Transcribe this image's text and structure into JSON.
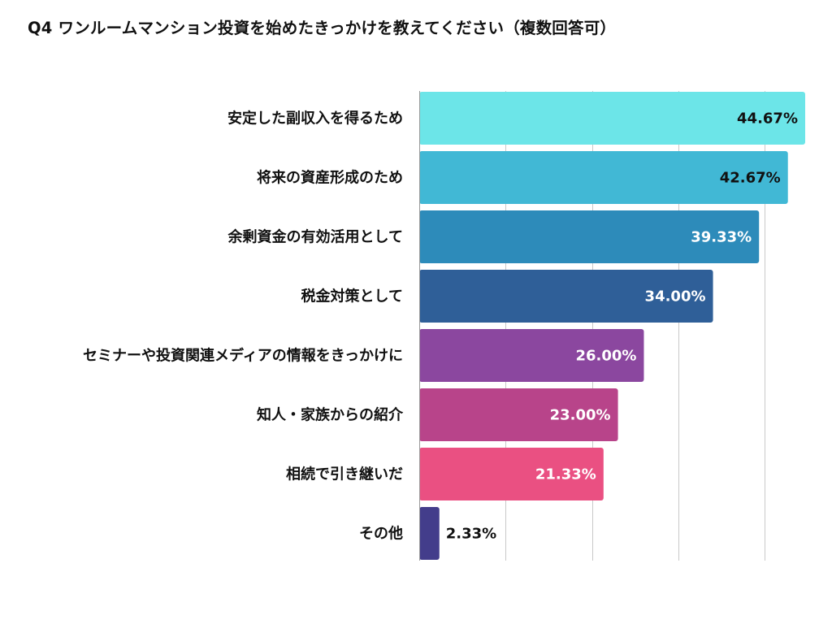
{
  "chart_data": {
    "type": "bar",
    "orientation": "horizontal",
    "title": "Q4 ワンルームマンション投資を始めたきっかけを教えてください（複数回答可）",
    "categories": [
      "安定した副収入を得るため",
      "将来の資産形成のため",
      "余剰資金の有効活用として",
      "税金対策として",
      "セミナーや投資関連メディアの情報をきっかけに",
      "知人・家族からの紹介",
      "相続で引き継いだ",
      "その他"
    ],
    "values": [
      44.67,
      42.67,
      39.33,
      34.0,
      26.0,
      23.0,
      21.33,
      2.33
    ],
    "value_labels": [
      "44.67%",
      "42.67%",
      "39.33%",
      "34.00%",
      "26.00%",
      "23.00%",
      "21.33%",
      "2.33%"
    ],
    "colors": [
      "#6ce5e8",
      "#41b8d5",
      "#2d8bba",
      "#2f5f98",
      "#8b479f",
      "#b8448a",
      "#ea5082",
      "#433d8b"
    ],
    "label_colors": [
      "#111111",
      "#111111",
      "#ffffff",
      "#ffffff",
      "#ffffff",
      "#ffffff",
      "#ffffff",
      "#111111"
    ],
    "xlim": [
      0,
      45
    ],
    "grid": true,
    "legend": "none",
    "xlabel": "",
    "ylabel": ""
  }
}
